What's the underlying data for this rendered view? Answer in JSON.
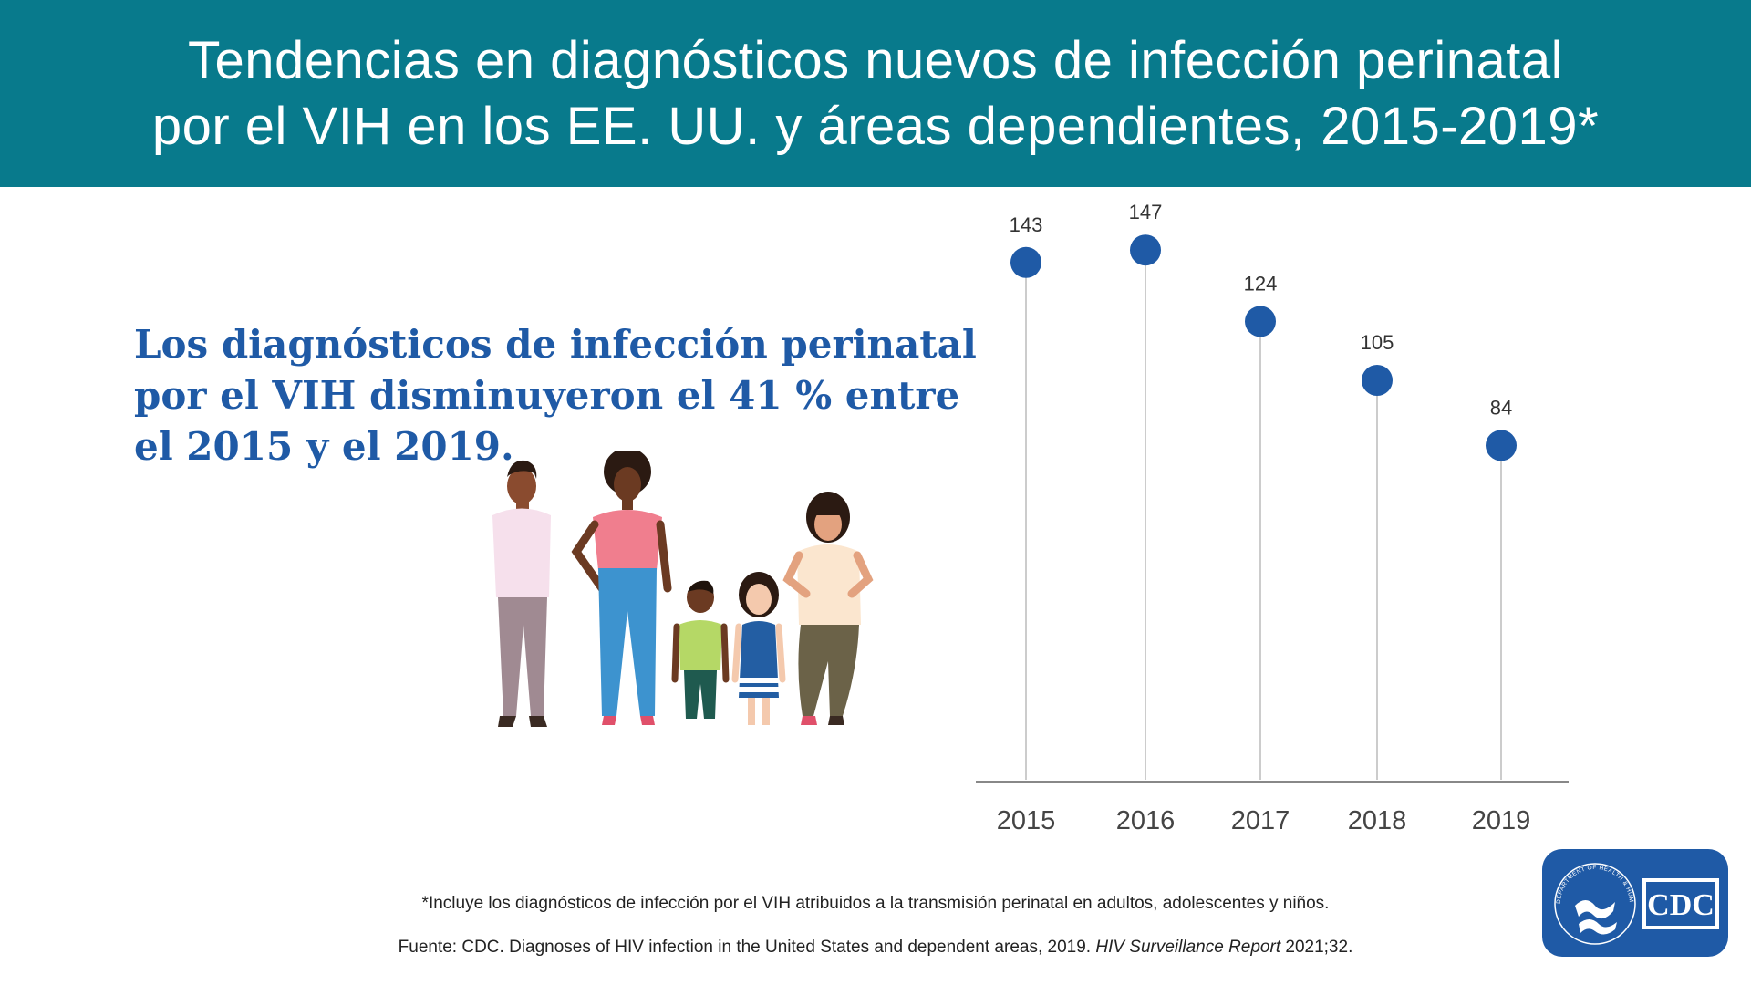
{
  "banner": {
    "title_line1": "Tendencias en diagnósticos nuevos de infección perinatal",
    "title_line2": "por el VIH en los EE. UU. y áreas dependientes, 2015-2019*"
  },
  "headline": {
    "line1": "Los diagnósticos de infección perinatal",
    "line2": "por el VIH disminuyeron el 41 % entre",
    "line3": "el 2015 y el 2019."
  },
  "footnotes": {
    "note": "*Incluye los diagnósticos de infección por el VIH atribuidos a la transmisión perinatal en adultos, adolescentes y niños.",
    "source_prefix": "Fuente: CDC. Diagnoses of HIV infection in the United States and dependent areas, 2019. ",
    "source_italic": "HIV Surveillance Report",
    "source_suffix": " 2021;32."
  },
  "logo": {
    "text": "CDC",
    "seal_text": "DEPARTMENT OF HEALTH & HUMAN SERVICES USA"
  },
  "colors": {
    "banner": "#087a8c",
    "headline": "#1f5aa6",
    "marker": "#1f5aa6",
    "stem": "#cccccc",
    "axis": "#888888"
  },
  "chart_data": {
    "type": "lollipop",
    "categories": [
      "2015",
      "2016",
      "2017",
      "2018",
      "2019"
    ],
    "values": [
      143,
      147,
      124,
      105,
      84
    ],
    "title": "",
    "xlabel": "",
    "ylabel": "",
    "ylim": [
      0,
      147
    ],
    "grid": false,
    "legend": "none"
  }
}
